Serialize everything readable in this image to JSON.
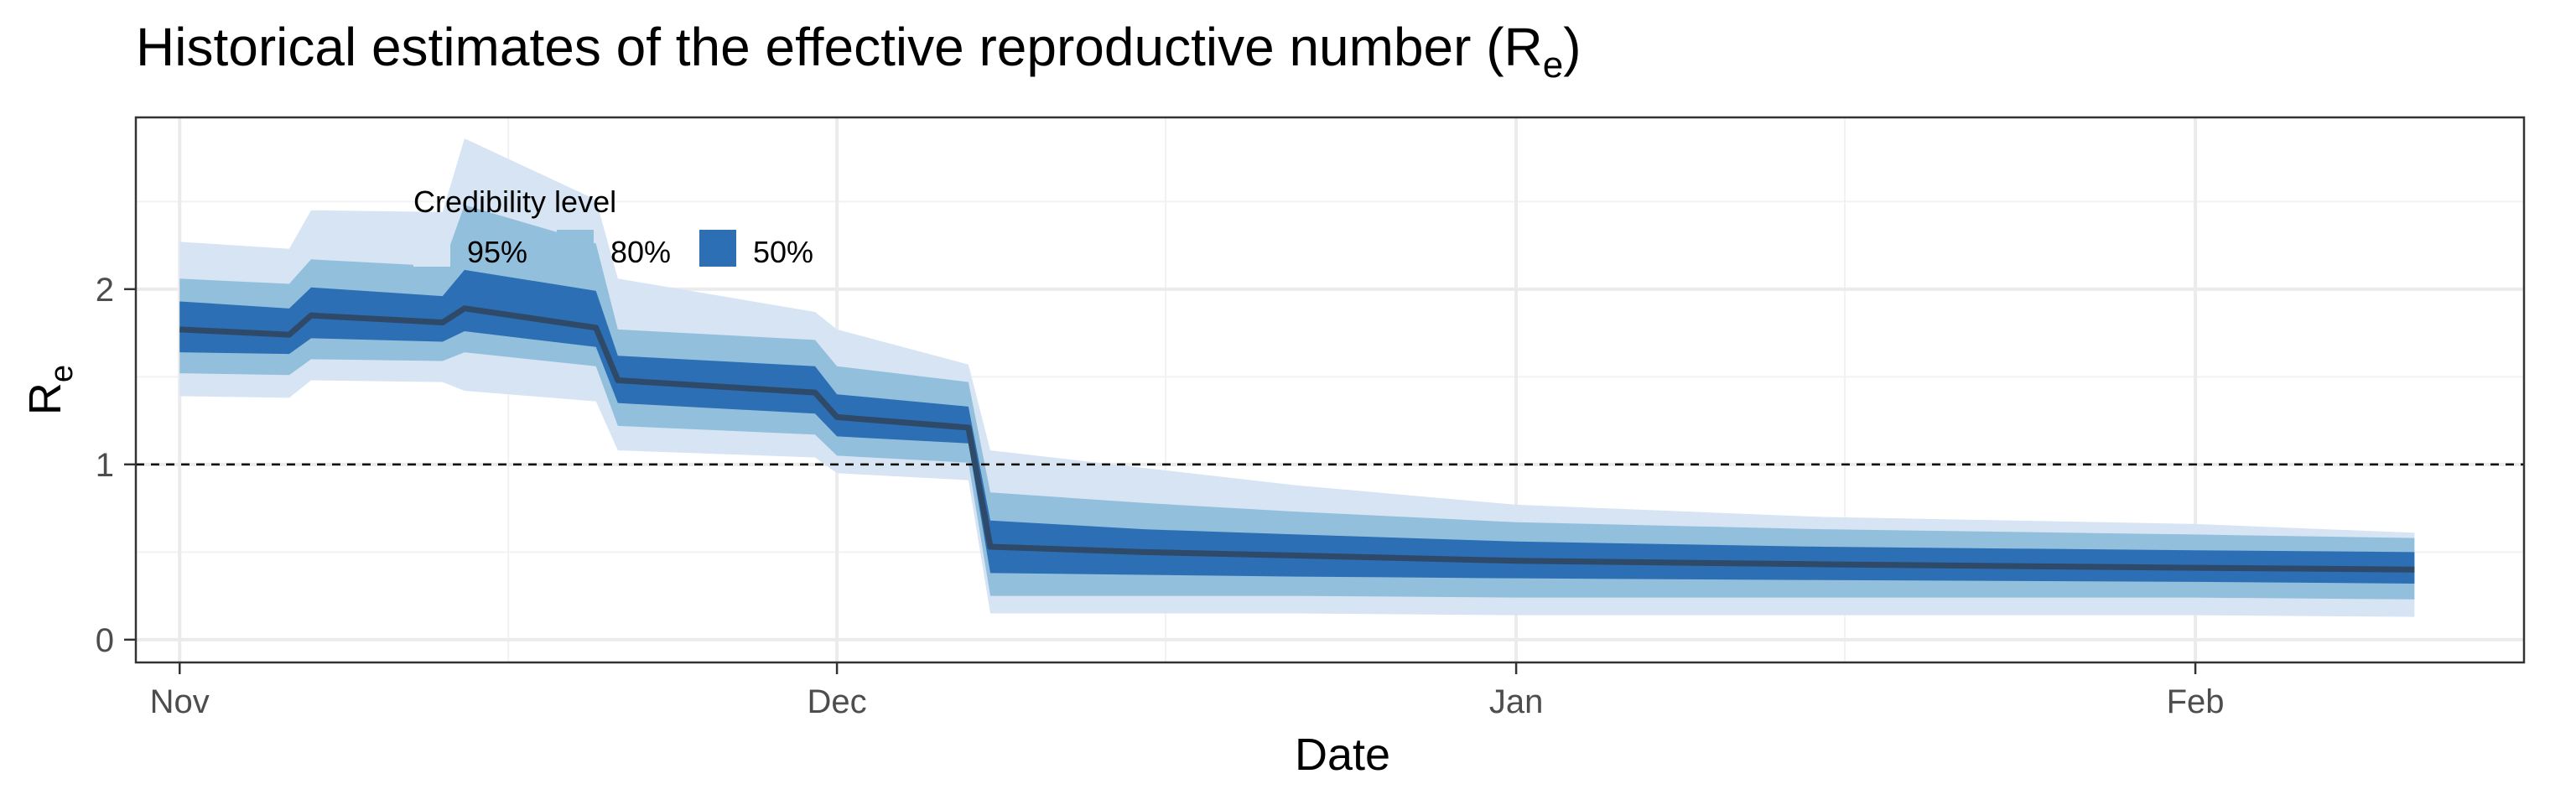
{
  "chart_data": {
    "type": "area",
    "title": "Historical estimates of the effective reproductive number (R",
    "title_subscript": "e",
    "title_suffix": ")",
    "xlabel": "Date",
    "ylabel": "R",
    "ylabel_subscript": "e",
    "x_ticks": [
      {
        "date": "2020-11-01",
        "label": "Nov"
      },
      {
        "date": "2020-12-01",
        "label": "Dec"
      },
      {
        "date": "2021-01-01",
        "label": "Jan"
      },
      {
        "date": "2021-02-01",
        "label": "Feb"
      }
    ],
    "x_minor_ticks": [
      "2020-11-16",
      "2020-12-16",
      "2021-01-16",
      "2021-02-16"
    ],
    "xlim": [
      "2020-10-30",
      "2021-02-16"
    ],
    "y_ticks": [
      0,
      1,
      2
    ],
    "y_tick_labels": [
      "0",
      "1",
      "2"
    ],
    "ylim": [
      -0.13,
      2.98
    ],
    "reference_line": {
      "y": 1,
      "style": "dashed"
    },
    "legend": {
      "title": "Credibility level",
      "placement": "top-left",
      "entries": [
        {
          "label": "95%",
          "color": "#d6e4f3"
        },
        {
          "label": "80%",
          "color": "#92bfdc"
        },
        {
          "label": "50%",
          "color": "#2c6fb4"
        }
      ]
    },
    "colors": {
      "ci95": "#d6e4f3",
      "ci80": "#92bfdc",
      "ci50": "#2c6fb4",
      "median": "#2e4a68"
    },
    "series": [
      {
        "key": "estimate",
        "dates": [
          "2020-11-01",
          "2020-11-06",
          "2020-11-07",
          "2020-11-13",
          "2020-11-14",
          "2020-11-20",
          "2020-11-21",
          "2020-11-30",
          "2020-12-01",
          "2020-12-07",
          "2020-12-08",
          "2020-12-15",
          "2020-12-22",
          "2021-01-01",
          "2021-01-15",
          "2021-02-01",
          "2021-02-11"
        ],
        "median": [
          1.77,
          1.74,
          1.85,
          1.81,
          1.89,
          1.78,
          1.48,
          1.41,
          1.27,
          1.21,
          0.53,
          0.5,
          0.48,
          0.45,
          0.43,
          0.41,
          0.4
        ],
        "ci50": {
          "lower": [
            1.64,
            1.63,
            1.72,
            1.7,
            1.76,
            1.67,
            1.35,
            1.29,
            1.16,
            1.12,
            0.38,
            0.37,
            0.36,
            0.35,
            0.34,
            0.33,
            0.32
          ],
          "upper": [
            1.93,
            1.89,
            2.01,
            1.96,
            2.11,
            1.99,
            1.62,
            1.56,
            1.4,
            1.33,
            0.68,
            0.63,
            0.6,
            0.56,
            0.53,
            0.51,
            0.5
          ]
        },
        "ci80": {
          "lower": [
            1.52,
            1.51,
            1.6,
            1.59,
            1.64,
            1.56,
            1.22,
            1.17,
            1.05,
            1.01,
            0.25,
            0.25,
            0.25,
            0.24,
            0.24,
            0.24,
            0.23
          ],
          "upper": [
            2.06,
            2.03,
            2.17,
            2.13,
            2.48,
            2.26,
            1.77,
            1.71,
            1.56,
            1.47,
            0.84,
            0.78,
            0.73,
            0.67,
            0.63,
            0.6,
            0.58
          ]
        },
        "ci95": {
          "lower": [
            1.39,
            1.38,
            1.48,
            1.47,
            1.42,
            1.36,
            1.08,
            1.04,
            0.95,
            0.91,
            0.15,
            0.15,
            0.15,
            0.14,
            0.14,
            0.14,
            0.13
          ],
          "upper": [
            2.27,
            2.23,
            2.45,
            2.44,
            2.86,
            2.51,
            2.06,
            1.87,
            1.77,
            1.57,
            1.08,
            0.98,
            0.88,
            0.77,
            0.7,
            0.66,
            0.61
          ]
        }
      }
    ]
  }
}
